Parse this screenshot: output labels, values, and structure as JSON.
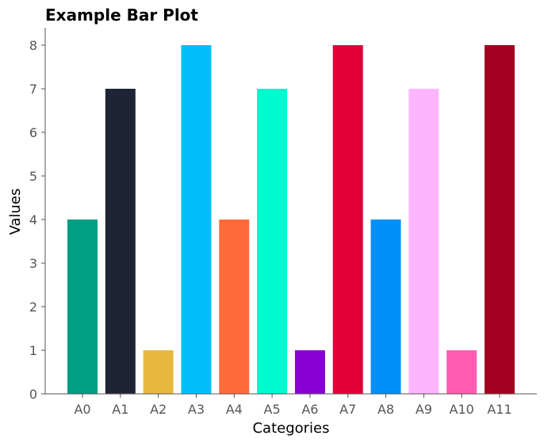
{
  "chart_data": {
    "type": "bar",
    "title": "Example Bar Plot",
    "xlabel": "Categories",
    "ylabel": "Values",
    "categories": [
      "A0",
      "A1",
      "A2",
      "A3",
      "A4",
      "A5",
      "A6",
      "A7",
      "A8",
      "A9",
      "A10",
      "A11"
    ],
    "values": [
      4,
      7,
      1,
      8,
      4,
      7,
      1,
      8,
      4,
      7,
      1,
      8
    ],
    "colors": [
      "#009E83",
      "#1F2336",
      "#E8B83E",
      "#00BFFA",
      "#FF6B3A",
      "#00FACF",
      "#8800D2",
      "#E00035",
      "#0090F8",
      "#FDB5FF",
      "#FF5BB0",
      "#A3001F"
    ],
    "ylim": [
      0,
      8.4
    ],
    "yticks": [
      0,
      1,
      2,
      3,
      4,
      5,
      6,
      7,
      8
    ],
    "grid": false,
    "legend": "none"
  }
}
